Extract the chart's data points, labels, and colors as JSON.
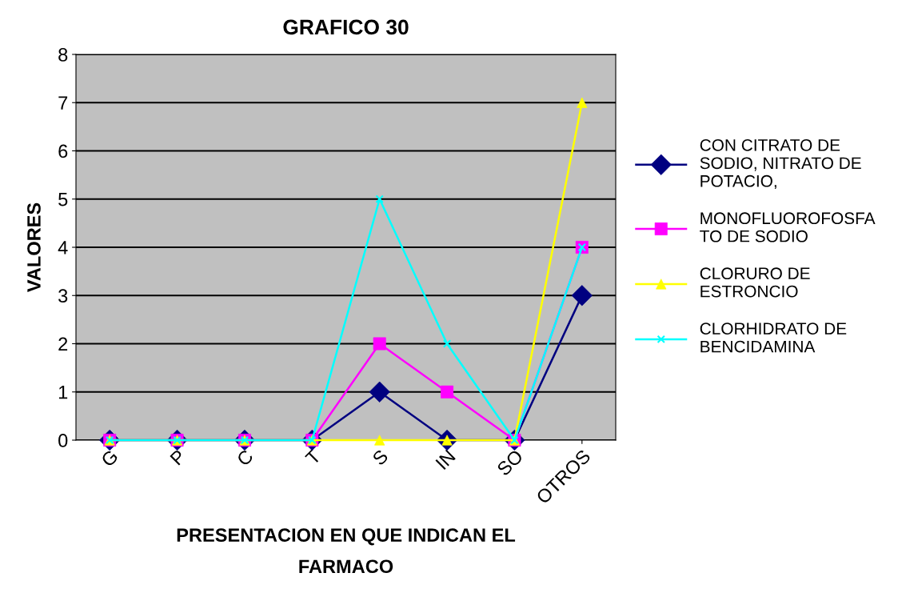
{
  "chart_data": {
    "type": "line",
    "title": "GRAFICO 30",
    "xlabel": "PRESENTACION EN QUE INDICAN EL\nFARMACO",
    "ylabel": "VALORES",
    "categories": [
      "G",
      "P",
      "C",
      "T",
      "S",
      "IN",
      "SO",
      "OTROS"
    ],
    "series": [
      {
        "name": "CON CITRATO DE\nSODIO, NITRATO DE\nPOTACIO,",
        "color": "#000080",
        "marker": "diamond",
        "values": [
          0,
          0,
          0,
          0,
          1,
          0,
          0,
          3
        ]
      },
      {
        "name": "MONOFLUOROFOSFA\nTO DE SODIO",
        "color": "#ff00ff",
        "marker": "square",
        "values": [
          0,
          0,
          0,
          0,
          2,
          1,
          0,
          4
        ]
      },
      {
        "name": "CLORURO DE\nESTRONCIO",
        "color": "#ffff00",
        "marker": "triangle",
        "values": [
          0,
          0,
          0,
          0,
          0,
          0,
          0,
          7
        ]
      },
      {
        "name": "CLORHIDRATO DE\nBENCIDAMINA",
        "color": "#00ffff",
        "marker": "cross",
        "values": [
          0,
          0,
          0,
          0,
          5,
          2,
          0,
          4
        ]
      }
    ],
    "ylim": [
      0,
      8
    ],
    "yticks": [
      0,
      1,
      2,
      3,
      4,
      5,
      6,
      7,
      8
    ],
    "grid": "y",
    "legend": "right",
    "line_style": "solid"
  }
}
